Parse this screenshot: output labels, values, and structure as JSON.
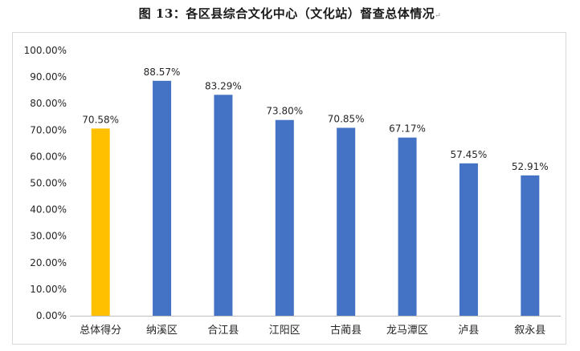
{
  "title": "图 13：各区县综合文化中心（文化站）督查总体情况",
  "title_mark": "↵",
  "colors": {
    "highlight": "#ffc000",
    "default": "#4472c4",
    "axis": "#bfbfbf"
  },
  "chart_data": {
    "type": "bar",
    "categories": [
      "总体得分",
      "纳溪区",
      "合江县",
      "江阳区",
      "古蔺县",
      "龙马潭区",
      "泸县",
      "叙永县"
    ],
    "values": [
      70.58,
      88.57,
      83.29,
      73.8,
      70.85,
      67.17,
      57.45,
      52.91
    ],
    "value_labels": [
      "70.58%",
      "88.57%",
      "83.29%",
      "73.80%",
      "70.85%",
      "67.17%",
      "57.45%",
      "52.91%"
    ],
    "highlight_index": 0,
    "ylim": [
      0,
      100
    ],
    "yticks": [
      "0.00%",
      "10.00%",
      "20.00%",
      "30.00%",
      "40.00%",
      "50.00%",
      "60.00%",
      "70.00%",
      "80.00%",
      "90.00%",
      "100.00%"
    ],
    "grid": false,
    "xlabel": "",
    "ylabel": ""
  }
}
